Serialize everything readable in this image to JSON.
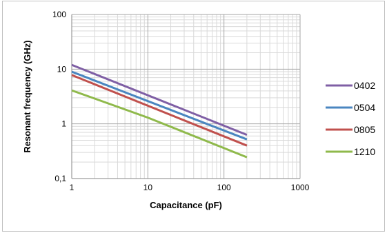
{
  "chart_data": {
    "type": "line",
    "xlabel": "Capacitance (pF)",
    "ylabel": "Resonant frequency (GHz)",
    "xscale": "log",
    "yscale": "log",
    "xlim": [
      1,
      1000
    ],
    "ylim": [
      0.1,
      100
    ],
    "xticks": [
      1,
      10,
      100,
      1000
    ],
    "xtick_labels": [
      "1",
      "10",
      "100",
      "1000"
    ],
    "yticks": [
      0.1,
      1,
      10,
      100
    ],
    "ytick_labels": [
      "0,1",
      "1",
      "10",
      "100"
    ],
    "grid": true,
    "legend_position": "right",
    "series": [
      {
        "name": "0402",
        "color": "#7f5fa5",
        "x": [
          1,
          200
        ],
        "y": [
          12,
          0.63
        ]
      },
      {
        "name": "0504",
        "color": "#4a86c0",
        "x": [
          1,
          200
        ],
        "y": [
          9,
          0.52
        ]
      },
      {
        "name": "0805",
        "color": "#c0504d",
        "x": [
          1,
          200
        ],
        "y": [
          7.8,
          0.4
        ]
      },
      {
        "name": "1210",
        "color": "#8fb94b",
        "x": [
          1,
          10,
          200
        ],
        "y": [
          4.1,
          1.3,
          0.245
        ]
      }
    ]
  }
}
